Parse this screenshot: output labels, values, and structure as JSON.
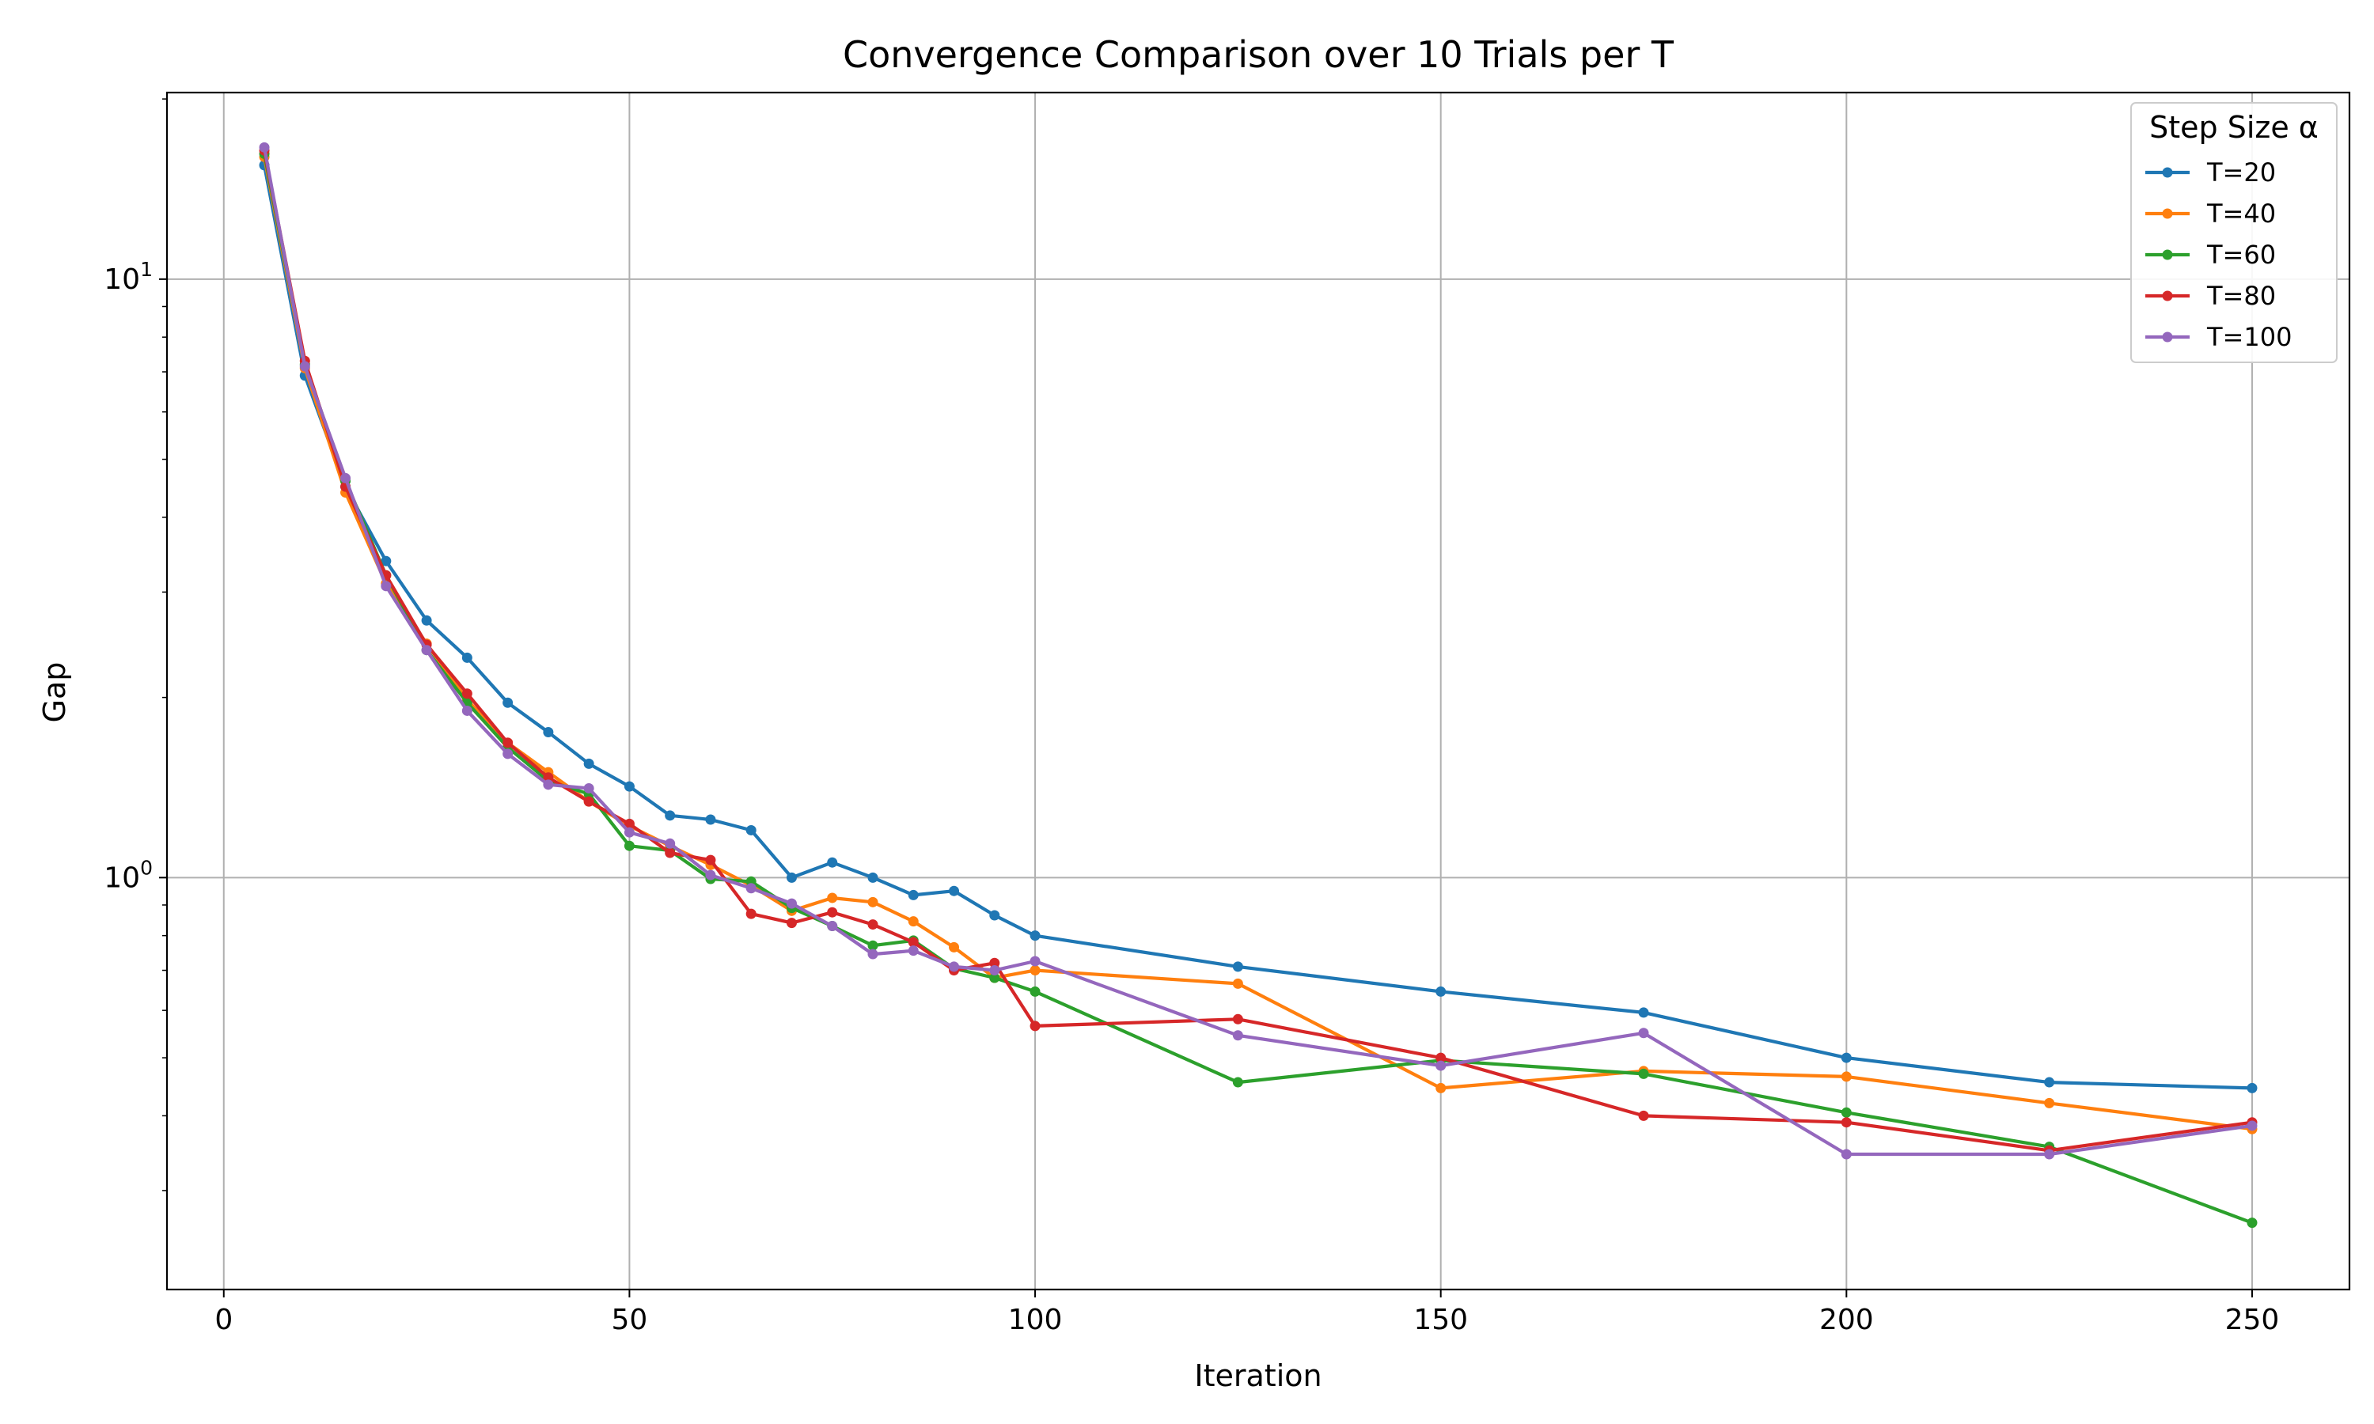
{
  "chart_data": {
    "type": "line",
    "title": "Convergence Comparison over 10 Trials per T",
    "xlabel": "Iteration",
    "ylabel": "Gap",
    "xlim": [
      -7,
      262
    ],
    "ylim": [
      0.205,
      20.5
    ],
    "yscale": "log",
    "grid": true,
    "x_ticks": [
      0,
      50,
      100,
      150,
      200,
      250
    ],
    "x_tick_labels": [
      "0",
      "50",
      "100",
      "150",
      "200",
      "250"
    ],
    "y_ticks": [
      1,
      10
    ],
    "y_tick_labels": [
      {
        "base": "10",
        "exp": "0"
      },
      {
        "base": "10",
        "exp": "1"
      }
    ],
    "legend": {
      "title": "Step Size α",
      "position": "top-right"
    },
    "x": [
      5,
      10,
      15,
      20,
      25,
      30,
      35,
      40,
      45,
      50,
      55,
      60,
      65,
      70,
      75,
      80,
      85,
      90,
      95,
      100,
      125,
      150,
      175,
      200,
      225,
      250
    ],
    "series": [
      {
        "name": "T=20",
        "color": "#1f77b4",
        "values": [
          15.5,
          6.9,
          4.5,
          3.38,
          2.69,
          2.33,
          1.96,
          1.75,
          1.55,
          1.42,
          1.27,
          1.25,
          1.2,
          1.0,
          1.06,
          1.0,
          0.935,
          0.95,
          0.865,
          0.8,
          0.71,
          0.645,
          0.595,
          0.5,
          0.455,
          0.445
        ]
      },
      {
        "name": "T=40",
        "color": "#ff7f0e",
        "values": [
          16.0,
          7.1,
          4.4,
          3.1,
          2.46,
          1.98,
          1.68,
          1.5,
          1.34,
          1.22,
          1.13,
          1.05,
          0.97,
          0.88,
          0.925,
          0.91,
          0.845,
          0.765,
          0.68,
          0.7,
          0.665,
          0.445,
          0.475,
          0.465,
          0.42,
          0.38
        ]
      },
      {
        "name": "T=60",
        "color": "#2ca02c",
        "values": [
          16.2,
          7.2,
          4.6,
          3.2,
          2.4,
          1.96,
          1.65,
          1.45,
          1.38,
          1.13,
          1.11,
          0.995,
          0.985,
          0.89,
          0.83,
          0.77,
          0.785,
          0.705,
          0.68,
          0.645,
          0.455,
          0.495,
          0.47,
          0.405,
          0.355,
          0.265
        ]
      },
      {
        "name": "T=80",
        "color": "#d62728",
        "values": [
          16.4,
          7.3,
          4.5,
          3.2,
          2.45,
          2.03,
          1.68,
          1.47,
          1.34,
          1.23,
          1.1,
          1.07,
          0.87,
          0.84,
          0.875,
          0.835,
          0.78,
          0.7,
          0.72,
          0.565,
          0.58,
          0.5,
          0.4,
          0.39,
          0.35,
          0.39
        ]
      },
      {
        "name": "T=100",
        "color": "#9467bd",
        "values": [
          16.6,
          7.15,
          4.65,
          3.07,
          2.4,
          1.9,
          1.61,
          1.43,
          1.41,
          1.19,
          1.14,
          1.01,
          0.96,
          0.905,
          0.83,
          0.745,
          0.755,
          0.71,
          0.7,
          0.725,
          0.545,
          0.485,
          0.55,
          0.345,
          0.345,
          0.385
        ]
      }
    ]
  }
}
